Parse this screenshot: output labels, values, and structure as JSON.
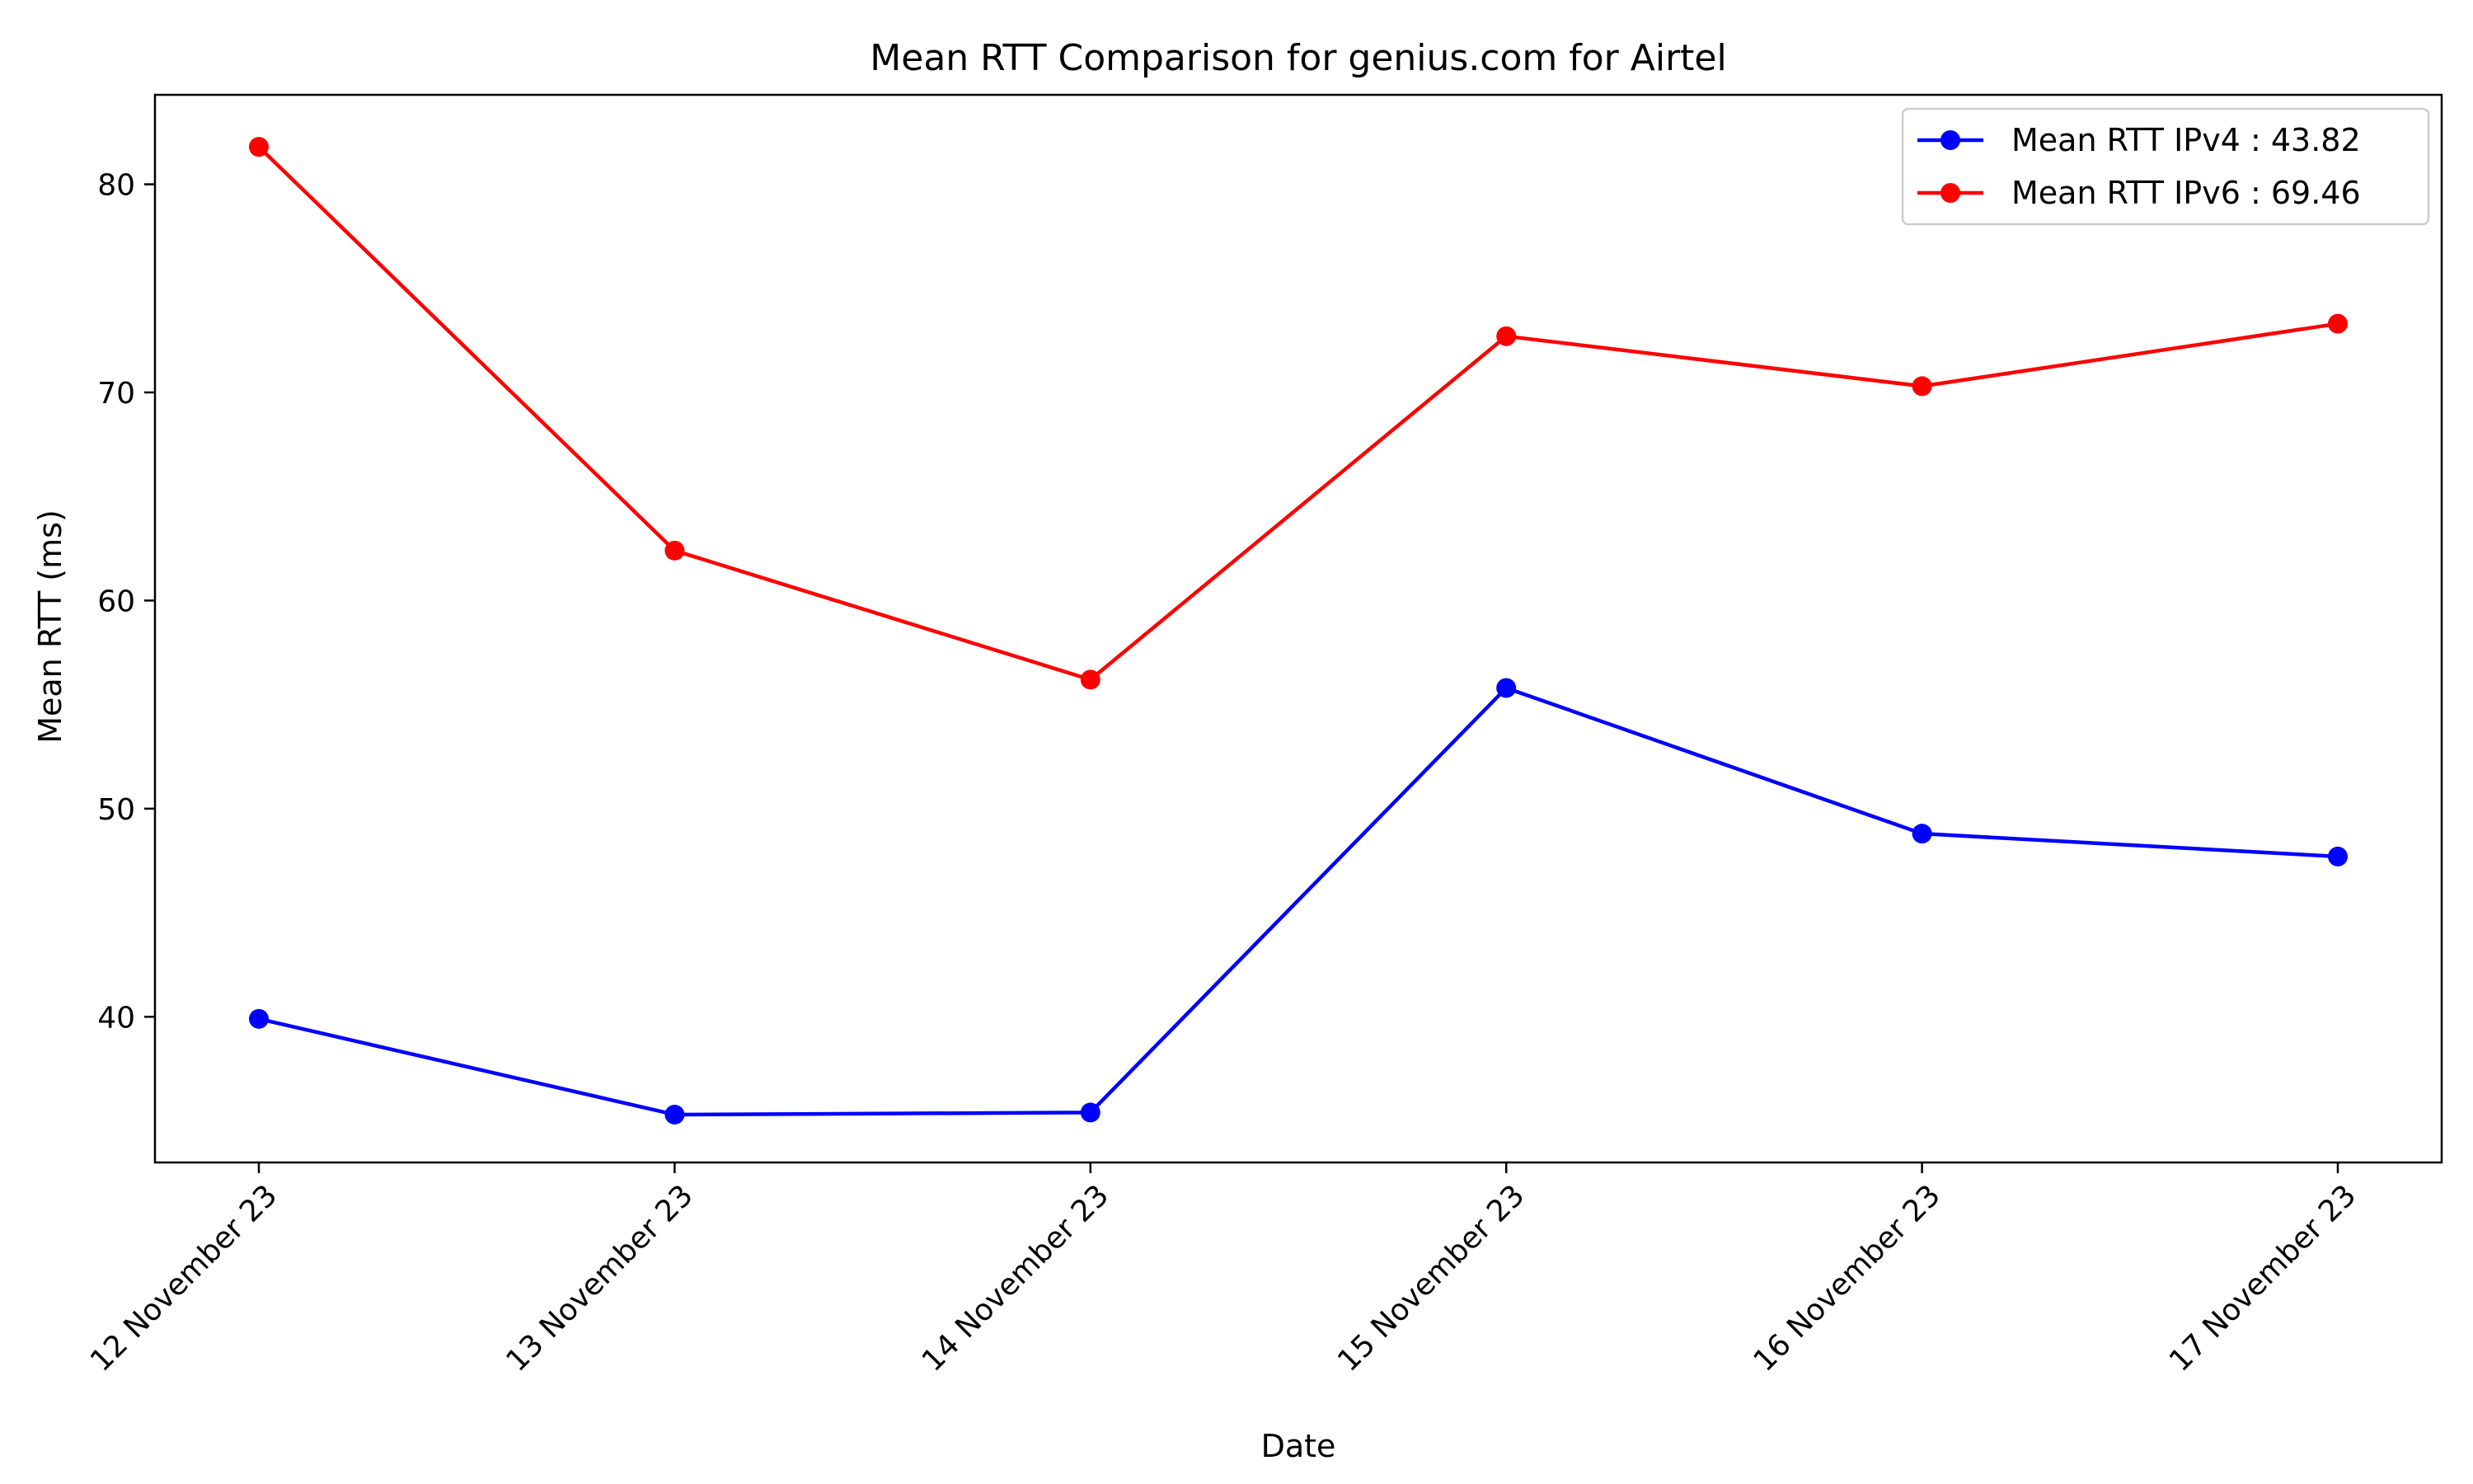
{
  "chart_data": {
    "type": "line",
    "title": "Mean RTT Comparison for genius.com for Airtel",
    "xlabel": "Date",
    "ylabel": "Mean RTT (ms)",
    "categories": [
      "12 November 23",
      "13 November 23",
      "14 November 23",
      "15 November 23",
      "16 November 23",
      "17 November 23"
    ],
    "ylim": [
      33,
      84.3
    ],
    "yticks": [
      40,
      50,
      60,
      70,
      80
    ],
    "grid": false,
    "legend_position": "top-right",
    "series": [
      {
        "name": "Mean RTT IPv4 : 43.82",
        "color": "#0000ff",
        "values": [
          39.9,
          35.3,
          35.4,
          55.8,
          48.8,
          47.7
        ]
      },
      {
        "name": "Mean RTT IPv6 : 69.46",
        "color": "#ff0000",
        "values": [
          81.8,
          62.4,
          56.2,
          72.7,
          70.3,
          73.3
        ]
      }
    ]
  }
}
